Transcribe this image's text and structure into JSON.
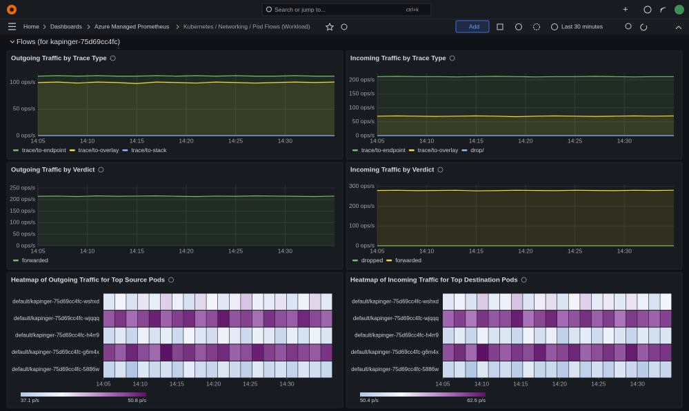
{
  "header": {
    "search": "Search or jump to...",
    "shortcut": "ctrl+k"
  },
  "breadcrumbs": [
    "Home",
    "Dashboards",
    "Azure Managed Prometheus",
    "Kubernetes / Networking / Pod Flows (Workload)"
  ],
  "toolbar": {
    "add": "Add",
    "time_range": "Last 30 minutes"
  },
  "row_title": "Flows (for kapinger-75d69cc4fc)",
  "chart_data": [
    {
      "type": "line",
      "title": "Outgoing Traffic by Trace Type",
      "x": [
        845,
        847,
        849,
        851,
        853,
        855,
        857,
        859,
        861,
        863,
        865,
        867,
        869,
        871,
        873,
        875
      ],
      "xlim": [
        845,
        875
      ],
      "xticks": [
        {
          "value": 845,
          "label": "14:05"
        },
        {
          "value": 850,
          "label": "14:10"
        },
        {
          "value": 855,
          "label": "14:15"
        },
        {
          "value": 860,
          "label": "14:20"
        },
        {
          "value": 865,
          "label": "14:25"
        },
        {
          "value": 870,
          "label": "14:30"
        }
      ],
      "ylim": [
        0,
        118
      ],
      "yticks": [
        {
          "value": 0,
          "label": "0 ops/s"
        },
        {
          "value": 50,
          "label": "50 ops/s"
        },
        {
          "value": 100,
          "label": "100 ops/s"
        }
      ],
      "grid": true,
      "series": [
        {
          "name": "trace/to-endpoint",
          "color": "#73bf69",
          "values": [
            112,
            113,
            112,
            113,
            112,
            112,
            113,
            112,
            113,
            112,
            113,
            112,
            112,
            113,
            112,
            112
          ]
        },
        {
          "name": "trace/to-overlay",
          "color": "#fade2a",
          "values": [
            100,
            101,
            99,
            101,
            100,
            98,
            101,
            100,
            99,
            101,
            100,
            99,
            100,
            101,
            100,
            101
          ]
        },
        {
          "name": "trace/to-stack",
          "color": "#8ab8ff",
          "values": [
            0,
            0,
            0,
            0,
            0,
            0,
            0,
            0,
            0,
            0,
            0,
            0,
            0,
            0,
            0,
            0
          ]
        }
      ]
    },
    {
      "type": "line",
      "title": "Incoming Traffic by Trace Type",
      "x": [
        845,
        847,
        849,
        851,
        853,
        855,
        857,
        859,
        861,
        863,
        865,
        867,
        869,
        871,
        873,
        875
      ],
      "xlim": [
        845,
        875
      ],
      "xticks": [
        {
          "value": 845,
          "label": "14:05"
        },
        {
          "value": 850,
          "label": "14:10"
        },
        {
          "value": 855,
          "label": "14:15"
        },
        {
          "value": 860,
          "label": "14:20"
        },
        {
          "value": 865,
          "label": "14:25"
        },
        {
          "value": 870,
          "label": "14:30"
        }
      ],
      "ylim": [
        0,
        225
      ],
      "yticks": [
        {
          "value": 0,
          "label": "0 ops/s"
        },
        {
          "value": 50,
          "label": "50 ops/s"
        },
        {
          "value": 100,
          "label": "100 ops/s"
        },
        {
          "value": 150,
          "label": "150 ops/s"
        },
        {
          "value": 200,
          "label": "200 ops/s"
        }
      ],
      "grid": true,
      "series": [
        {
          "name": "trace/to-endpoint",
          "color": "#73bf69",
          "values": [
            212,
            213,
            212,
            212,
            211,
            212,
            213,
            212,
            211,
            212,
            212,
            213,
            212,
            211,
            212,
            212
          ]
        },
        {
          "name": "trace/to-overlay",
          "color": "#fade2a",
          "values": [
            70,
            71,
            70,
            69,
            70,
            71,
            70,
            68,
            70,
            71,
            70,
            69,
            70,
            71,
            70,
            71
          ]
        },
        {
          "name": "drop/",
          "color": "#8ab8ff",
          "values": [
            0,
            0,
            0,
            0,
            0,
            0,
            0,
            0,
            0,
            0,
            0,
            0,
            0,
            0,
            0,
            0
          ]
        }
      ]
    },
    {
      "type": "line",
      "title": "Outgoing Traffic by Verdict",
      "x": [
        845,
        847,
        849,
        851,
        853,
        855,
        857,
        859,
        861,
        863,
        865,
        867,
        869,
        871,
        873,
        875
      ],
      "xlim": [
        845,
        875
      ],
      "xticks": [
        {
          "value": 845,
          "label": "14:05"
        },
        {
          "value": 850,
          "label": "14:10"
        },
        {
          "value": 855,
          "label": "14:15"
        },
        {
          "value": 860,
          "label": "14:20"
        },
        {
          "value": 865,
          "label": "14:25"
        },
        {
          "value": 870,
          "label": "14:30"
        }
      ],
      "ylim": [
        0,
        265
      ],
      "yticks": [
        {
          "value": 0,
          "label": "0 ops/s"
        },
        {
          "value": 50,
          "label": "50 ops/s"
        },
        {
          "value": 100,
          "label": "100 ops/s"
        },
        {
          "value": 150,
          "label": "150 ops/s"
        },
        {
          "value": 200,
          "label": "200 ops/s"
        },
        {
          "value": 250,
          "label": "250 ops/s"
        }
      ],
      "grid": true,
      "series": [
        {
          "name": "forwarded",
          "color": "#73bf69",
          "values": [
            214,
            215,
            213,
            216,
            214,
            215,
            216,
            214,
            213,
            215,
            214,
            216,
            215,
            214,
            213,
            215
          ]
        }
      ]
    },
    {
      "type": "line",
      "title": "Incoming Traffic by Verdict",
      "x": [
        845,
        847,
        849,
        851,
        853,
        855,
        857,
        859,
        861,
        863,
        865,
        867,
        869,
        871,
        873,
        875
      ],
      "xlim": [
        845,
        875
      ],
      "xticks": [
        {
          "value": 845,
          "label": "14:05"
        },
        {
          "value": 850,
          "label": "14:10"
        },
        {
          "value": 855,
          "label": "14:15"
        },
        {
          "value": 860,
          "label": "14:20"
        },
        {
          "value": 865,
          "label": "14:25"
        },
        {
          "value": 870,
          "label": "14:30"
        }
      ],
      "ylim": [
        0,
        310
      ],
      "yticks": [
        {
          "value": 0,
          "label": "0 ops/s"
        },
        {
          "value": 100,
          "label": "100 ops/s"
        },
        {
          "value": 200,
          "label": "200 ops/s"
        },
        {
          "value": 300,
          "label": "300 ops/s"
        }
      ],
      "grid": true,
      "series": [
        {
          "name": "dropped",
          "color": "#73bf69",
          "values": [
            0,
            0,
            0,
            0,
            0,
            0,
            0,
            0,
            0,
            0,
            0,
            0,
            0,
            0,
            0,
            0
          ]
        },
        {
          "name": "forwarded",
          "color": "#fade2a",
          "values": [
            280,
            281,
            279,
            280,
            281,
            278,
            279,
            281,
            280,
            279,
            281,
            280,
            279,
            281,
            280,
            281
          ]
        }
      ]
    },
    {
      "type": "heatmap",
      "title": "Heatmap of Outgoing Traffic for Top Source Pods",
      "rows": [
        "default/kapinger-75d69cc4fc-wshxd",
        "default/kapinger-75d69cc4fc-wjqqq",
        "default/kapinger-75d69cc4fc-h4rr9",
        "default/kapinger-75d69cc4fc-g6m4x",
        "default/kapinger-75d69cc4fc-5886w"
      ],
      "xlim": [
        845,
        876.2
      ],
      "xticks": [
        {
          "value": 845,
          "label": "14:05"
        },
        {
          "value": 850,
          "label": "14:10"
        },
        {
          "value": 855,
          "label": "14:15"
        },
        {
          "value": 860,
          "label": "14:20"
        },
        {
          "value": 865,
          "label": "14:25"
        },
        {
          "value": 870,
          "label": "14:30"
        }
      ],
      "scale": [
        {
          "value": 37.1,
          "label": "37.1 p/s"
        },
        {
          "value": 50.8,
          "label": "50.8 p/s"
        }
      ],
      "colors": [
        "#b3c8e6",
        "#f3f6fb",
        "#b07cc0",
        "#5e1166"
      ],
      "values": [
        [
          40.2,
          41.5,
          39.8,
          42.3,
          40.9,
          43.1,
          41.2,
          39.5,
          42.8,
          41.7,
          40.3,
          42.0,
          43.5,
          41.1,
          40.6,
          42.4,
          39.9,
          41.8,
          42.9,
          40.5
        ],
        [
          47.8,
          49.2,
          46.9,
          48.5,
          50.1,
          47.3,
          48.8,
          49.6,
          47.1,
          48.2,
          50.4,
          47.9,
          48.7,
          46.8,
          49.3,
          48.1,
          47.5,
          49.8,
          48.4,
          47.2
        ],
        [
          39.1,
          40.4,
          38.6,
          41.2,
          39.7,
          40.8,
          38.9,
          41.5,
          40.1,
          39.3,
          41.9,
          40.6,
          39.0,
          41.1,
          40.3,
          38.7,
          40.9,
          39.6,
          41.3,
          40.0
        ],
        [
          48.9,
          47.6,
          49.9,
          48.3,
          47.1,
          50.8,
          48.6,
          49.4,
          47.8,
          48.9,
          49.7,
          47.4,
          48.2,
          50.2,
          48.8,
          47.9,
          49.1,
          48.5,
          47.7,
          49.3
        ],
        [
          38.4,
          39.8,
          37.1,
          40.2,
          38.9,
          39.5,
          38.1,
          40.7,
          39.2,
          38.6,
          40.1,
          39.0,
          37.9,
          40.4,
          38.8,
          39.6,
          38.3,
          40.0,
          39.3,
          38.7
        ]
      ]
    },
    {
      "type": "heatmap",
      "title": "Heatmap of Incoming Traffic for Top Destination Pods",
      "rows": [
        "default/kapinger-75d69cc4fc-wshxd",
        "default/kapinger-75d69cc4fc-wjqqq",
        "default/kapinger-75d69cc4fc-h4rr9",
        "default/kapinger-75d69cc4fc-g6m4x",
        "default/kapinger-75d69cc4fc-5886w"
      ],
      "xlim": [
        845,
        874.4
      ],
      "xticks": [
        {
          "value": 845,
          "label": "14:05"
        },
        {
          "value": 850,
          "label": "14:10"
        },
        {
          "value": 855,
          "label": "14:15"
        },
        {
          "value": 860,
          "label": "14:20"
        },
        {
          "value": 865,
          "label": "14:25"
        },
        {
          "value": 870,
          "label": "14:30"
        }
      ],
      "scale": [
        {
          "value": 50.4,
          "label": "50.4 p/s"
        },
        {
          "value": 62.6,
          "label": "62.6 p/s"
        }
      ],
      "colors": [
        "#b3c8e6",
        "#f3f6fb",
        "#b07cc0",
        "#5e1166"
      ],
      "values": [
        [
          53.2,
          54.6,
          52.8,
          55.9,
          53.7,
          54.1,
          56.2,
          53.0,
          54.8,
          55.3,
          52.9,
          54.4,
          55.7,
          53.6,
          54.9,
          53.3,
          55.1,
          54.0,
          52.7,
          54.5
        ],
        [
          59.4,
          60.8,
          58.7,
          61.2,
          59.9,
          60.3,
          62.1,
          58.9,
          60.5,
          61.7,
          59.2,
          60.1,
          61.4,
          59.6,
          60.9,
          58.8,
          61.0,
          60.2,
          59.5,
          60.7
        ],
        [
          52.1,
          53.4,
          51.6,
          54.0,
          52.7,
          53.1,
          51.9,
          54.3,
          52.5,
          53.8,
          51.2,
          52.9,
          53.6,
          52.2,
          54.1,
          52.8,
          51.7,
          53.3,
          52.4,
          53.0
        ],
        [
          60.2,
          61.5,
          59.3,
          62.6,
          60.8,
          59.7,
          61.1,
          60.4,
          62.0,
          59.9,
          60.6,
          61.8,
          59.5,
          60.3,
          61.3,
          60.0,
          62.2,
          59.8,
          60.9,
          61.2
        ],
        [
          51.8,
          52.6,
          50.4,
          53.1,
          51.5,
          52.3,
          50.9,
          53.4,
          51.7,
          52.0,
          50.7,
          52.8,
          51.3,
          52.5,
          51.1,
          53.0,
          51.9,
          50.8,
          52.2,
          51.6
        ]
      ]
    }
  ]
}
